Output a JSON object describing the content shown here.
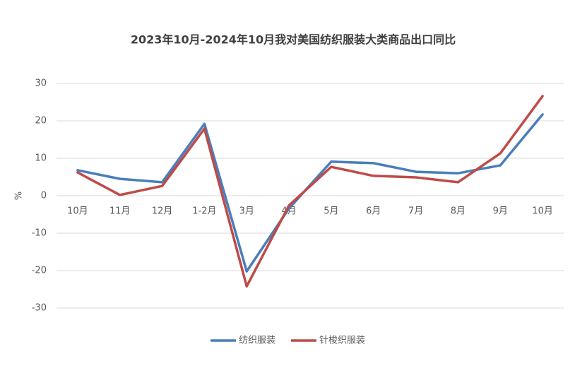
{
  "chart_data": {
    "type": "line",
    "title": "2023年10月-2024年10月我对美国纺织服装大类商品出口同比",
    "y_label": "%",
    "categories": [
      "10月",
      "11月",
      "12月",
      "1-2月",
      "3月",
      "4月",
      "5月",
      "6月",
      "7月",
      "8月",
      "9月",
      "10月"
    ],
    "series": [
      {
        "name": "纺织服装",
        "color": "#4a7ebb",
        "values": [
          6.8,
          4.5,
          3.6,
          19.2,
          -20.2,
          -3.4,
          9.1,
          8.7,
          6.4,
          6.0,
          8.1,
          21.7
        ]
      },
      {
        "name": "针梭织服装",
        "color": "#be4b48",
        "values": [
          6.2,
          0.2,
          2.6,
          17.9,
          -24.2,
          -2.6,
          7.7,
          5.3,
          4.9,
          3.6,
          11.3,
          26.6
        ]
      }
    ],
    "ylim": [
      -30,
      30
    ],
    "yticks": [
      -30,
      -20,
      -10,
      0,
      10,
      20,
      30
    ],
    "grid": true,
    "legend": "bottom"
  }
}
